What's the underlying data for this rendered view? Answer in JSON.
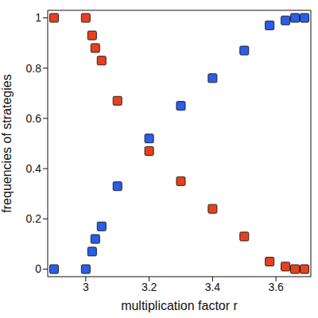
{
  "chart_data": {
    "type": "scatter",
    "x_label": "multiplication factor r",
    "y_label": "frequencies of strategies",
    "x": [
      2.9,
      3.0,
      3.02,
      3.03,
      3.05,
      3.1,
      3.2,
      3.3,
      3.4,
      3.5,
      3.58,
      3.63,
      3.66,
      3.69
    ],
    "series": [
      {
        "color": "#2a5ee8",
        "marker": "square",
        "values": [
          0,
          0,
          0.07,
          0.12,
          0.17,
          0.33,
          0.52,
          0.65,
          0.76,
          0.87,
          0.97,
          0.99,
          1.0,
          1.0
        ]
      },
      {
        "color": "#e8401c",
        "marker": "square",
        "values": [
          1.0,
          1.0,
          0.93,
          0.88,
          0.83,
          0.67,
          0.47,
          0.35,
          0.24,
          0.13,
          0.03,
          0.01,
          0,
          0
        ]
      }
    ],
    "xlim": [
      2.88,
      3.71
    ],
    "xticks": [
      3,
      3.2,
      3.4,
      3.6
    ],
    "ylim": [
      -0.03,
      1.03
    ],
    "yticks": [
      0,
      0.2,
      0.4,
      0.6,
      0.8,
      1
    ]
  }
}
